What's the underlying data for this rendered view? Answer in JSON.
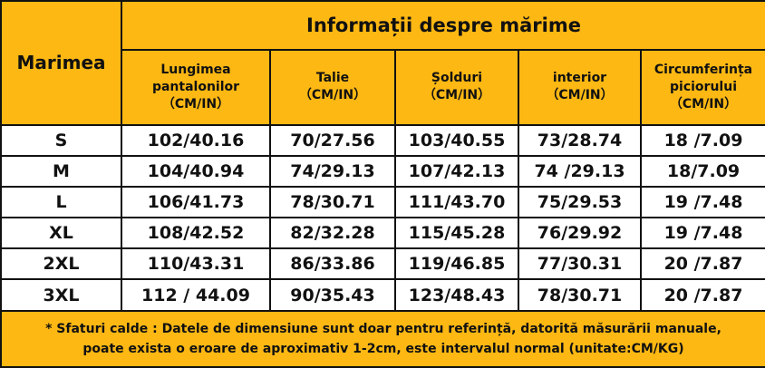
{
  "table": {
    "title": "Informații despre mărime",
    "row_header": "Marimea",
    "columns": [
      [
        "Lungimea",
        "pantalonilor",
        "（CM/IN）"
      ],
      [
        "Talie",
        "（CM/IN）"
      ],
      [
        "Șolduri",
        "（CM/IN）"
      ],
      [
        "interior",
        "（CM/IN）"
      ],
      [
        "Circumferința",
        "piciorului",
        "（CM/IN）"
      ]
    ],
    "rows": [
      [
        "S",
        "102/40.16",
        "70/27.56",
        "103/40.55",
        "73/28.74",
        "18 /7.09"
      ],
      [
        "M",
        "104/40.94",
        "74/29.13",
        "107/42.13",
        "74 /29.13",
        "18/7.09"
      ],
      [
        "L",
        "106/41.73",
        "78/30.71",
        "111/43.70",
        "75/29.53",
        "19 /7.48"
      ],
      [
        "XL",
        "108/42.52",
        "82/32.28",
        "115/45.28",
        "76/29.92",
        "19 /7.48"
      ],
      [
        "2XL",
        "110/43.31",
        "86/33.86",
        "119/46.85",
        "77/30.31",
        "20 /7.87"
      ],
      [
        "3XL",
        "112 / 44.09",
        "90/35.43",
        "123/48.43",
        "78/30.71",
        "20 /7.87"
      ]
    ],
    "note": "* Sfaturi calde : Datele de dimensiune sunt doar pentru referință, datorită măsurării manuale, poate exista o eroare de aproximativ 1-2cm, este intervalul normal (unitate:CM/KG)"
  }
}
